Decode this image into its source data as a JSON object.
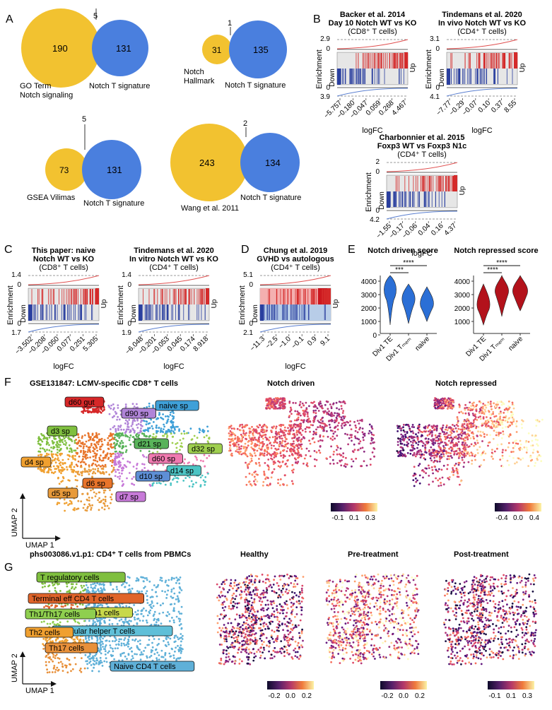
{
  "panelA": {
    "letter": "A",
    "venns": [
      {
        "left_count": "190",
        "right_count": "131",
        "overlap": "5",
        "left_label_1": "GO Term",
        "left_label_2": "Notch signaling",
        "right_label": "Notch T signature"
      },
      {
        "left_count": "31",
        "right_count": "135",
        "overlap": "1",
        "left_label_1": "Notch",
        "left_label_2": "Hallmark",
        "right_label": "Notch T signature"
      },
      {
        "left_count": "73",
        "right_count": "131",
        "overlap": "5",
        "left_label_1": "GSEA Vilimas",
        "right_label": "Notch T signature"
      },
      {
        "left_count": "243",
        "right_count": "134",
        "overlap": "2",
        "left_label_1": "Wang et al. 2011",
        "right_label": "Notch T signature"
      }
    ]
  },
  "panelB": {
    "letter": "B",
    "plots": [
      {
        "title_1": "Backer et al. 2014",
        "title_2": "Day 10 Notch WT vs KO",
        "subtitle": "(CD8⁺ T cells)",
        "top_value": "2.9",
        "bottom_value": "3.9",
        "ticks": [
          "−5.757",
          "−0.180",
          "−0.047",
          "0.059",
          "0.268",
          "4.467"
        ]
      },
      {
        "title_1": "Tindemans et al. 2020",
        "title_2": "In vivo Notch WT vs KO",
        "subtitle": "(CD4⁺ T cells)",
        "top_value": "3.1",
        "bottom_value": "4.1",
        "ticks": [
          "−7.77",
          "−0.29",
          "−0.07",
          "0.10",
          "0.37",
          "8.55"
        ]
      },
      {
        "title_1": "Charbonnier et al. 2015",
        "title_2": "Foxp3 WT vs Foxp3 N1c",
        "subtitle": "(CD4⁺ T cells)",
        "top_value": "2",
        "bottom_value": "4.2",
        "ticks": [
          "−1.55",
          "−0.17",
          "−0.06",
          "0.04",
          "0.16",
          "4.37"
        ]
      }
    ]
  },
  "panelC": {
    "letter": "C",
    "plots": [
      {
        "title_1": "This paper: naive",
        "title_2": "Notch WT vs KO",
        "subtitle": "(CD8⁺ T cells)",
        "top_value": "1.4",
        "bottom_value": "1.7",
        "ticks": [
          "−3.502",
          "−0.208",
          "−0.050",
          "0.077",
          "0.251",
          "5.305"
        ]
      },
      {
        "title_1": "Tindemans et al. 2020",
        "title_2": "In vitro Notch WT vs KO",
        "subtitle": "(CD4⁺ T cells)",
        "top_value": "1.4",
        "bottom_value": "1.9",
        "ticks": [
          "−6.048",
          "−0.201",
          "−0.053",
          "0.045",
          "0.174",
          "8.918"
        ]
      }
    ]
  },
  "panelD": {
    "letter": "D",
    "plots": [
      {
        "title_1": "Chung et al. 2019",
        "title_2": "GVHD vs autologous",
        "subtitle": "(CD4⁺ T cells)",
        "top_value": "5.1",
        "bottom_value": "2.1",
        "ticks": [
          "−11.3",
          "−2.5",
          "−1.0",
          "−0.1",
          "0.9",
          "9.1"
        ]
      }
    ]
  },
  "gsea_labels": {
    "enrichment": "Enrichment",
    "down": "Down",
    "up": "Up",
    "zero": "0",
    "xlabel": "logFC"
  },
  "panelE": {
    "letter": "E",
    "driven": {
      "title": "Notch driven score",
      "yticks": [
        "4000",
        "3000",
        "2000",
        "1000",
        "0"
      ],
      "sig1": "***",
      "sig2": "****",
      "color": "#2b6fd6"
    },
    "repressed": {
      "title": "Notch repressed score",
      "yticks": [
        "4000",
        "3000",
        "2000",
        "1000"
      ],
      "sig1": "****",
      "sig2": "****",
      "color": "#b3121b"
    },
    "groups": [
      "Div1 TE",
      "Div1 Tₘₑₘ",
      "naive"
    ]
  },
  "panelF": {
    "letter": "F",
    "title": "GSE131847: LCMV-specific CD8⁺ T cells",
    "driven_title": "Notch driven",
    "repressed_title": "Notch repressed",
    "axis_y": "UMAP 2",
    "axis_x": "UMAP 1",
    "clusters": [
      {
        "label": "d60 gut",
        "color": "#d62728"
      },
      {
        "label": "d90 sp",
        "color": "#b084d8"
      },
      {
        "label": "naive sp",
        "color": "#3fa0d8"
      },
      {
        "label": "d3 sp",
        "color": "#7fbf3f"
      },
      {
        "label": "d21 sp",
        "color": "#59b35a"
      },
      {
        "label": "d32 sp",
        "color": "#9fcf4f"
      },
      {
        "label": "d4 sp",
        "color": "#f0a030"
      },
      {
        "label": "d60 sp",
        "color": "#f07ab0"
      },
      {
        "label": "d14 sp",
        "color": "#4cc4c4"
      },
      {
        "label": "d6 sp",
        "color": "#e8742a"
      },
      {
        "label": "d10 sp",
        "color": "#5e8fd6"
      },
      {
        "label": "d5 sp",
        "color": "#e89a3a"
      },
      {
        "label": "d7 sp",
        "color": "#c77ad8"
      }
    ],
    "legend_driven": [
      "-0.1",
      "0.1",
      "0.3"
    ],
    "legend_repressed": [
      "-0.4",
      "0.0",
      "0.4"
    ]
  },
  "panelG": {
    "letter": "G",
    "title": "phs003086.v1.p1: CD4⁺ T cells from PBMCs",
    "subtitles": [
      "Healthy",
      "Pre-treatment",
      "Post-treatment"
    ],
    "axis_y": "UMAP 2",
    "axis_x": "UMAP 1",
    "clusters": [
      {
        "label": "T regulatory cells",
        "color": "#7fbf3f"
      },
      {
        "label": "Terminal eff CD4 T cells",
        "color": "#e0642a"
      },
      {
        "label": "Th1 cells",
        "color": "#c8d84a"
      },
      {
        "label": "Th1/Th17 cells",
        "color": "#8fcf4f"
      },
      {
        "label": "Follicular helper T cells",
        "color": "#5fbfd8"
      },
      {
        "label": "Th2 cells",
        "color": "#f0a030"
      },
      {
        "label": "Naive CD4 T cells",
        "color": "#5fb0d8"
      },
      {
        "label": "Th17 cells",
        "color": "#e8903a"
      }
    ],
    "legends": [
      [
        "-0.2",
        "0.0",
        "0.2"
      ],
      [
        "-0.2",
        "0.0",
        "0.2"
      ],
      [
        "-0.1",
        "0.1",
        "0.3"
      ]
    ]
  },
  "colors": {
    "gold": "#f2c230",
    "blue": "#4a7fde",
    "red": "#d42a2a",
    "navy": "#2a3f9f"
  }
}
